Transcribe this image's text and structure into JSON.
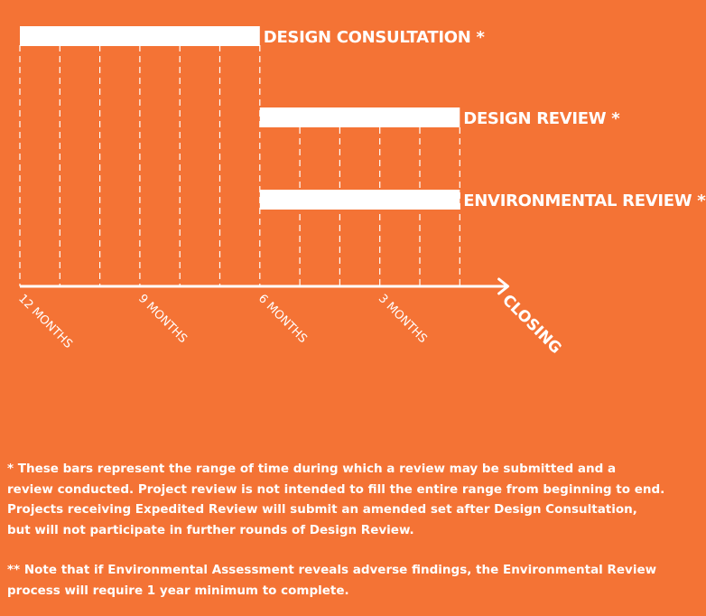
{
  "chart_data": {
    "type": "bar",
    "orientation": "horizontal",
    "title": "",
    "xlabel": "",
    "ylabel": "",
    "x_axis": {
      "ticks": [
        {
          "value": 12,
          "label": "12 MONTHS"
        },
        {
          "value": 9,
          "label": "9 MONTHS"
        },
        {
          "value": 6,
          "label": "6 MONTHS"
        },
        {
          "value": 3,
          "label": "3 MONTHS"
        }
      ],
      "end_label": "CLOSING",
      "range_months_before_closing": [
        12,
        0
      ],
      "minor_gridline_step_months": 1,
      "gridlines": true,
      "gridline_style": "dashed"
    },
    "bars": [
      {
        "label": "DESIGN CONSULTATION *",
        "start": 12,
        "end": 6
      },
      {
        "label": "DESIGN REVIEW *",
        "start": 6,
        "end": 1
      },
      {
        "label": "ENVIRONMENTAL REVIEW **",
        "start": 6,
        "end": 1
      }
    ]
  },
  "notes": {
    "footnote_1_lines": [
      "* These bars represent the range of time during which a review may be submitted and a",
      "review conducted. Project review is not intended to fill the entire range from beginning to end.",
      "Projects receiving Expedited Review will submit an amended set after Design Consultation,",
      "but will not participate in further rounds of Design Review."
    ],
    "footnote_2_lines": [
      "** Note that if Environmental Assessment reveals adverse findings, the Environmental Review",
      "process will require 1 year minimum to complete."
    ]
  },
  "colors": {
    "background": "#F47335",
    "foreground": "#FFFFFF"
  }
}
